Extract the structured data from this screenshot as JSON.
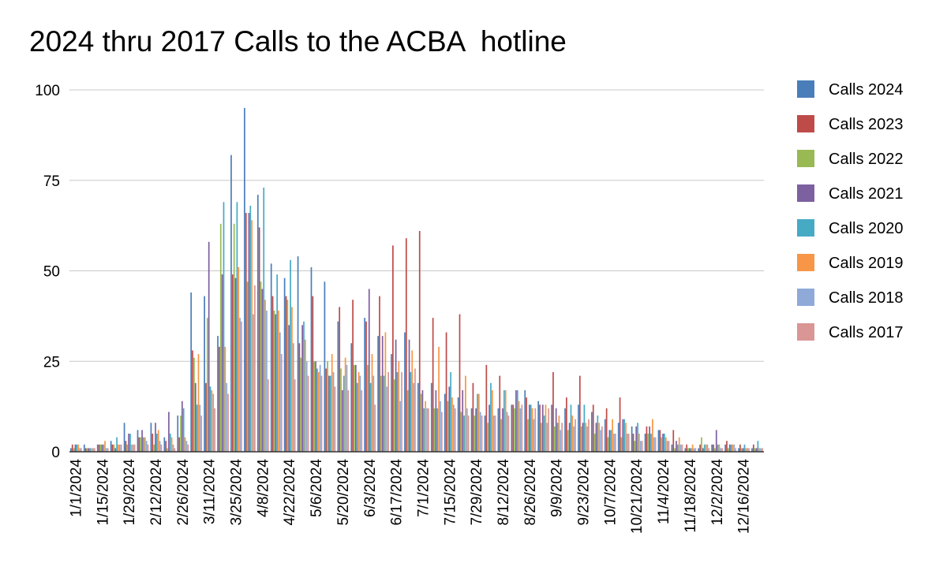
{
  "chart_data": {
    "type": "bar",
    "title": "2024 thru 2017 Calls to the ACBA  hotline",
    "xlabel": "",
    "ylabel": "",
    "ylim": [
      0,
      100
    ],
    "yticks": [
      0,
      25,
      50,
      75,
      100
    ],
    "grid": true,
    "legend_position": "right",
    "x_tick_labels": [
      "1/1/2024",
      "1/15/2024",
      "1/29/2024",
      "2/12/2024",
      "2/26/2024",
      "3/11/2024",
      "3/25/2024",
      "4/8/2024",
      "4/22/2024",
      "5/6/2024",
      "5/20/2024",
      "6/3/2024",
      "6/17/2024",
      "7/1/2024",
      "7/15/2024",
      "7/29/2024",
      "8/12/2024",
      "8/26/2024",
      "9/9/2024",
      "9/23/2024",
      "10/7/2024",
      "10/21/2024",
      "11/4/2024",
      "11/18/2024",
      "12/2/2024",
      "12/16/2024"
    ],
    "categories": [
      "1/1/2024",
      "1/8/2024",
      "1/15/2024",
      "1/22/2024",
      "1/29/2024",
      "2/5/2024",
      "2/12/2024",
      "2/19/2024",
      "2/26/2024",
      "3/4/2024",
      "3/11/2024",
      "3/18/2024",
      "3/25/2024",
      "4/1/2024",
      "4/8/2024",
      "4/15/2024",
      "4/22/2024",
      "4/29/2024",
      "5/6/2024",
      "5/13/2024",
      "5/20/2024",
      "5/27/2024",
      "6/3/2024",
      "6/10/2024",
      "6/17/2024",
      "6/24/2024",
      "7/1/2024",
      "7/8/2024",
      "7/15/2024",
      "7/22/2024",
      "7/29/2024",
      "8/5/2024",
      "8/12/2024",
      "8/19/2024",
      "8/26/2024",
      "9/2/2024",
      "9/9/2024",
      "9/16/2024",
      "9/23/2024",
      "9/30/2024",
      "10/7/2024",
      "10/14/2024",
      "10/21/2024",
      "10/28/2024",
      "11/4/2024",
      "11/11/2024",
      "11/18/2024",
      "11/25/2024",
      "12/2/2024",
      "12/9/2024",
      "12/16/2024",
      "12/23/2024"
    ],
    "series": [
      {
        "name": "Calls 2024",
        "color": "#4a7ebb",
        "values": [
          1,
          2,
          2,
          3,
          8,
          6,
          8,
          4,
          10,
          44,
          43,
          32,
          82,
          95,
          71,
          52,
          48,
          54,
          51,
          47,
          36,
          30,
          37,
          32,
          27,
          33,
          19,
          19,
          16,
          15,
          12,
          10,
          12,
          13,
          17,
          14,
          13,
          12,
          13,
          11,
          9,
          8,
          7,
          5,
          6,
          2,
          1,
          1,
          2,
          2,
          1,
          1
        ]
      },
      {
        "name": "Calls 2023",
        "color": "#be4b48",
        "values": [
          2,
          1,
          2,
          2,
          3,
          4,
          5,
          3,
          4,
          28,
          19,
          29,
          49,
          66,
          62,
          43,
          43,
          30,
          43,
          23,
          40,
          42,
          36,
          43,
          57,
          59,
          61,
          37,
          33,
          38,
          19,
          24,
          21,
          13,
          15,
          13,
          22,
          15,
          21,
          13,
          12,
          15,
          5,
          7,
          6,
          6,
          2,
          2,
          2,
          3,
          2,
          2
        ]
      },
      {
        "name": "Calls 2022",
        "color": "#98b954",
        "values": [
          1,
          1,
          2,
          2,
          2,
          4,
          2,
          1,
          10,
          26,
          37,
          63,
          63,
          47,
          47,
          39,
          42,
          26,
          25,
          25,
          23,
          24,
          24,
          21,
          20,
          17,
          16,
          12,
          14,
          11,
          10,
          8,
          9,
          12,
          9,
          8,
          7,
          6,
          7,
          5,
          4,
          4,
          3,
          5,
          4,
          1,
          1,
          4,
          1,
          1,
          1,
          1
        ]
      },
      {
        "name": "Calls 2021",
        "color": "#7d60a0",
        "values": [
          2,
          1,
          2,
          1,
          5,
          6,
          8,
          11,
          14,
          19,
          58,
          49,
          48,
          66,
          45,
          38,
          35,
          35,
          25,
          21,
          17,
          24,
          45,
          32,
          31,
          31,
          17,
          17,
          18,
          17,
          12,
          13,
          12,
          17,
          13,
          13,
          12,
          8,
          8,
          8,
          6,
          9,
          7,
          7,
          5,
          3,
          1,
          1,
          6,
          2,
          1,
          1
        ]
      },
      {
        "name": "Calls 2020",
        "color": "#46aac5",
        "values": [
          2,
          1,
          2,
          4,
          5,
          4,
          5,
          5,
          12,
          13,
          18,
          69,
          69,
          68,
          73,
          49,
          53,
          36,
          23,
          21,
          21,
          19,
          19,
          21,
          22,
          22,
          12,
          12,
          22,
          10,
          16,
          19,
          17,
          17,
          13,
          10,
          8,
          13,
          13,
          10,
          6,
          9,
          8,
          5,
          5,
          2,
          1,
          2,
          2,
          2,
          2,
          3
        ]
      },
      {
        "name": "Calls 2019",
        "color": "#f79646",
        "values": [
          2,
          1,
          3,
          2,
          2,
          4,
          6,
          4,
          4,
          27,
          17,
          29,
          51,
          64,
          42,
          39,
          40,
          31,
          22,
          27,
          26,
          22,
          27,
          33,
          25,
          28,
          14,
          29,
          15,
          21,
          16,
          17,
          17,
          14,
          12,
          13,
          10,
          10,
          8,
          8,
          9,
          8,
          5,
          9,
          4,
          4,
          2,
          2,
          2,
          2,
          1,
          1
        ]
      },
      {
        "name": "Calls 2018",
        "color": "#8faad8",
        "values": [
          1,
          1,
          1,
          2,
          2,
          3,
          3,
          2,
          3,
          13,
          16,
          19,
          37,
          38,
          39,
          33,
          30,
          25,
          24,
          22,
          24,
          21,
          21,
          18,
          14,
          19,
          12,
          14,
          13,
          12,
          11,
          10,
          11,
          12,
          9,
          8,
          6,
          7,
          7,
          6,
          5,
          5,
          3,
          4,
          3,
          2,
          1,
          2,
          1,
          2,
          1,
          1
        ]
      },
      {
        "name": "Calls 2017",
        "color": "#d99694",
        "values": [
          1,
          1,
          1,
          2,
          2,
          2,
          2,
          1,
          2,
          10,
          12,
          16,
          36,
          46,
          20,
          27,
          20,
          21,
          21,
          18,
          17,
          17,
          13,
          22,
          22,
          23,
          12,
          11,
          12,
          10,
          10,
          10,
          10,
          13,
          12,
          12,
          8,
          9,
          9,
          7,
          5,
          5,
          3,
          4,
          3,
          2,
          1,
          1,
          1,
          1,
          1,
          1
        ]
      }
    ]
  }
}
